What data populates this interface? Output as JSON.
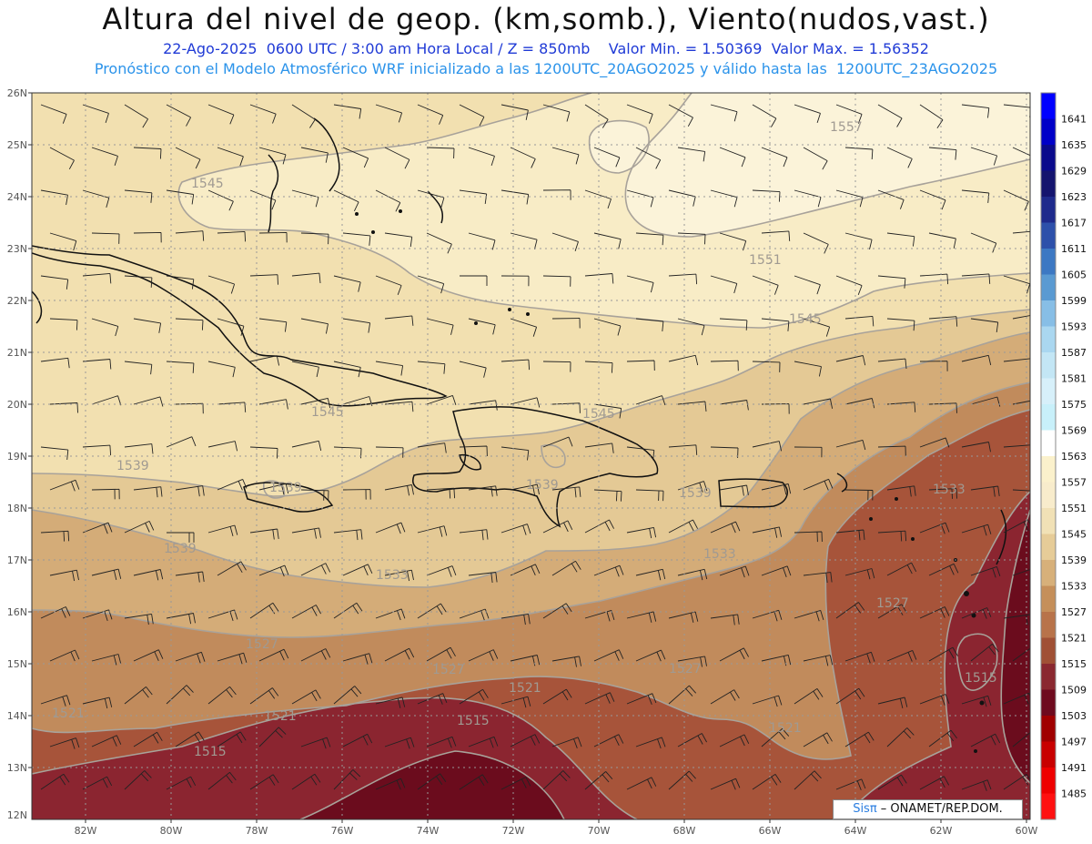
{
  "header": {
    "title": "Altura del nivel de geop. (km,somb.), Viento(nudos,vast.)",
    "line1": "22-Ago-2025  0600 UTC / 3:00 am Hora Local / Z = 850mb    Valor Min. = 1.50369  Valor Max. = 1.56352",
    "line2": "Pronóstico con el Modelo Atmosférico WRF inicializado a las 1200UTC_20AGO2025 y válido hasta las  1200UTC_23AGO2025"
  },
  "axes": {
    "lat_labels": [
      "26N",
      "25N",
      "24N",
      "23N",
      "22N",
      "21N",
      "20N",
      "19N",
      "18N",
      "17N",
      "16N",
      "15N",
      "14N",
      "13N",
      "12N"
    ],
    "lon_labels": [
      "82W",
      "80W",
      "78W",
      "76W",
      "74W",
      "72W",
      "70W",
      "68W",
      "66W",
      "64W",
      "62W",
      "60W"
    ]
  },
  "contour_labels": [
    "1557",
    "1551",
    "1545",
    "1545",
    "1545",
    "1545",
    "1539",
    "1539",
    "1539",
    "1539",
    "1539",
    "1533",
    "1533",
    "1533",
    "1527",
    "1527",
    "1527",
    "1527",
    "1521",
    "1521",
    "1521",
    "1521",
    "1521",
    "1515",
    "1515",
    "1515"
  ],
  "colorbar": {
    "levels": [
      "1641",
      "1635",
      "1629",
      "1623",
      "1617",
      "1611",
      "1605",
      "1599",
      "1593",
      "1587",
      "1581",
      "1575",
      "1569",
      "1563",
      "1557",
      "1551",
      "1545",
      "1539",
      "1533",
      "1527",
      "1521",
      "1515",
      "1509",
      "1503",
      "1497",
      "1491",
      "1485"
    ],
    "colors": [
      "#0000ff",
      "#0000c8",
      "#0a0a8c",
      "#14146e",
      "#1e2a8c",
      "#2d50aa",
      "#3c78c3",
      "#5a9ad2",
      "#87bee6",
      "#aad7f0",
      "#c3e6f5",
      "#d7f0fa",
      "#c8f0fa",
      "#ffffff",
      "#fbf1cc",
      "#f8eccc",
      "#f1e1b6",
      "#e6cc98",
      "#d7b07a",
      "#c58f5a",
      "#b8734a",
      "#a05035",
      "#8a2830",
      "#6e0a1e",
      "#a00000",
      "#c80000",
      "#ee0000",
      "#ff1010"
    ]
  },
  "colors": {
    "band_1557": "#fbf3d9",
    "band_1551": "#f8ecc6",
    "band_1545": "#f2e0b0",
    "band_1539": "#e4c995",
    "band_1533": "#d4ac78",
    "band_1527": "#c18b5c",
    "band_1521": "#a7543a",
    "band_1515": "#8b2530",
    "band_1509": "#6b0c1d",
    "contour": "#a8a29a",
    "coast": "#111111"
  },
  "credit": {
    "brand": "Sisπ",
    "text": " – ONAMET/REP.DOM."
  }
}
